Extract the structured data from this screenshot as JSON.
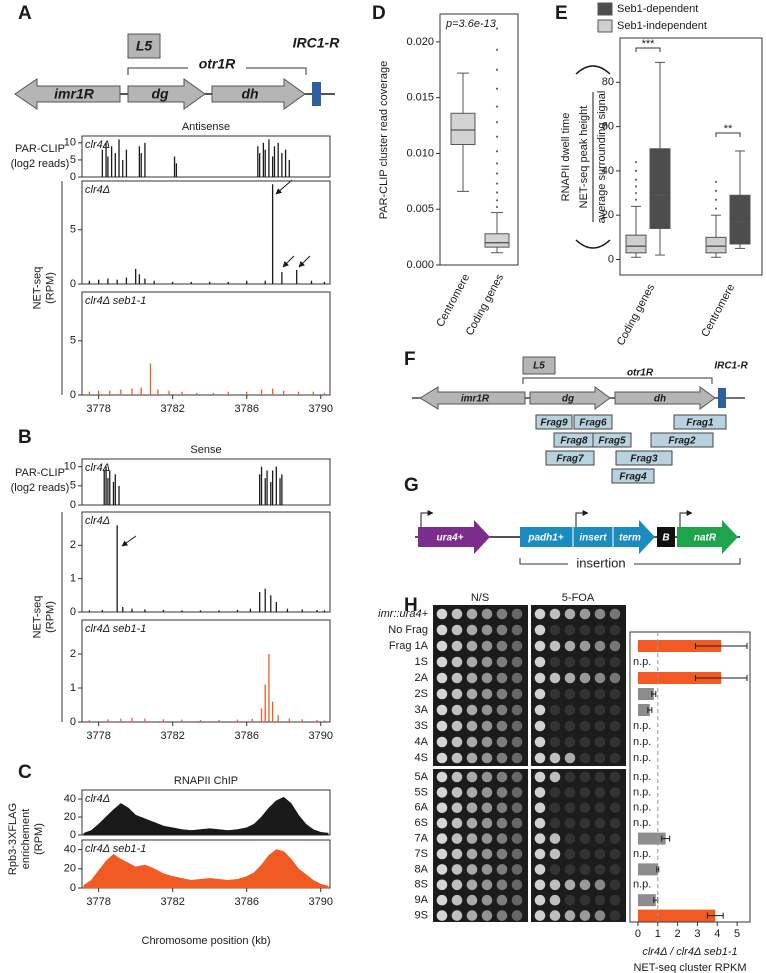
{
  "panels": [
    "A",
    "B",
    "C",
    "D",
    "E",
    "F",
    "G",
    "H"
  ],
  "diagram_A": {
    "genes": [
      "imr1R",
      "dg",
      "dh"
    ],
    "repeat": "L5",
    "region": "otr1R",
    "boundary": "IRC1-R"
  },
  "diagram_F": {
    "genes": [
      "imr1R",
      "dg",
      "dh"
    ],
    "repeat": "L5",
    "region": "otr1R",
    "boundary": "IRC1-R",
    "fragments": [
      "Frag9",
      "Frag6",
      "Frag1",
      "Frag8",
      "Frag5",
      "Frag2",
      "Frag7",
      "Frag3",
      "Frag4"
    ]
  },
  "diagram_G": {
    "marker": "ura4+",
    "parts": [
      "padh1+",
      "insert",
      "term",
      "B",
      "natR"
    ],
    "bracket": "insertion"
  },
  "chart_data": [
    {
      "type": "spikes",
      "title": "Antisense",
      "ylabel": [
        "PAR-CLIP",
        "(log2 reads)"
      ],
      "name": "clr4Δ",
      "color": "#1a1a1a",
      "x": [
        3778.2,
        3778.4,
        3778.5,
        3778.7,
        3778.9,
        3779.1,
        3779.3,
        3779.5,
        3780.2,
        3780.3,
        3780.5,
        3782.1,
        3782.2,
        3786.6,
        3786.7,
        3786.9,
        3787.0,
        3787.2,
        3787.4,
        3787.5,
        3787.7,
        3787.9,
        3788.1,
        3788.3
      ],
      "values": [
        8,
        10,
        6,
        9,
        7,
        11,
        5,
        8,
        9,
        7,
        10,
        6,
        4,
        9,
        7,
        10,
        8,
        11,
        6,
        9,
        10,
        7,
        8,
        5
      ],
      "xlim": [
        3777.1,
        3790.5
      ],
      "ylim": [
        0,
        12
      ],
      "yticks": [
        0,
        5,
        10
      ]
    },
    {
      "type": "spikes",
      "ylabel": [
        "NET-seq",
        "(RPM)"
      ],
      "name": "clr4Δ",
      "color": "#1a1a1a",
      "x": [
        3777.5,
        3778.0,
        3778.5,
        3779.0,
        3779.5,
        3780.0,
        3780.2,
        3780.5,
        3781.0,
        3782.0,
        3783.0,
        3784.0,
        3785.0,
        3786.0,
        3787.0,
        3787.4,
        3787.9,
        3788.7,
        3789.5,
        3790.2
      ],
      "values": [
        0.3,
        0.4,
        0.5,
        0.4,
        0.6,
        1.4,
        0.9,
        0.5,
        0.3,
        0.2,
        0.2,
        0.2,
        0.2,
        0.3,
        0.3,
        9.2,
        1.1,
        1.3,
        0.3,
        0.2
      ],
      "xlim": [
        3777.1,
        3790.5
      ],
      "ylim": [
        0,
        9.5
      ],
      "yticks": [
        0,
        5
      ]
    },
    {
      "type": "spikes",
      "name": "clr4Δ seb1-1",
      "color": "#f15a22",
      "x": [
        3777.5,
        3778.0,
        3778.6,
        3779.2,
        3779.8,
        3780.3,
        3780.8,
        3781.2,
        3781.8,
        3782.5,
        3783.3,
        3784.2,
        3785.0,
        3786.0,
        3786.8,
        3787.4,
        3788.0,
        3788.8,
        3789.6,
        3790.2
      ],
      "values": [
        0.3,
        0.4,
        0.4,
        0.5,
        0.6,
        0.7,
        2.9,
        0.5,
        0.4,
        0.3,
        0.2,
        0.2,
        0.3,
        0.3,
        0.5,
        0.6,
        0.4,
        0.3,
        0.3,
        0.2
      ],
      "xlim": [
        3777.1,
        3790.5
      ],
      "ylim": [
        0,
        9.5
      ],
      "yticks": [
        0,
        5
      ],
      "xticks": [
        3778,
        3782,
        3786,
        3790
      ]
    },
    {
      "type": "spikes",
      "title": "Sense",
      "ylabel": [
        "PAR-CLIP",
        "(log2 reads)"
      ],
      "name": "clr4Δ",
      "color": "#1a1a1a",
      "x": [
        3778.3,
        3778.4,
        3778.5,
        3778.6,
        3778.8,
        3778.9,
        3779.1,
        3786.7,
        3786.8,
        3787.0,
        3787.1,
        3787.3,
        3787.4,
        3787.6,
        3787.8,
        3787.9
      ],
      "values": [
        9,
        10,
        7,
        9,
        6,
        8,
        5,
        8,
        10,
        7,
        9,
        6,
        9,
        10,
        7,
        8
      ],
      "xlim": [
        3777.1,
        3790.5
      ],
      "ylim": [
        0,
        12
      ],
      "yticks": [
        0,
        5,
        10
      ]
    },
    {
      "type": "spikes",
      "ylabel": [
        "NET-seq",
        "(RPM)"
      ],
      "name": "clr4Δ",
      "color": "#1a1a1a",
      "x": [
        3777.5,
        3778.2,
        3779.0,
        3779.3,
        3779.8,
        3780.5,
        3781.5,
        3782.5,
        3783.5,
        3784.5,
        3785.5,
        3786.2,
        3786.7,
        3787.0,
        3787.3,
        3787.6,
        3788.2,
        3789.0,
        3789.8,
        3790.2
      ],
      "values": [
        0.05,
        0.06,
        2.6,
        0.15,
        0.1,
        0.08,
        0.06,
        0.05,
        0.05,
        0.05,
        0.06,
        0.1,
        0.6,
        0.7,
        0.5,
        0.3,
        0.1,
        0.08,
        0.06,
        0.05
      ],
      "xlim": [
        3777.1,
        3790.5
      ],
      "ylim": [
        0,
        3
      ],
      "yticks": [
        0,
        1,
        2
      ]
    },
    {
      "type": "spikes",
      "name": "clr4Δ seb1-1",
      "color": "#f15a22",
      "x": [
        3777.5,
        3778.5,
        3779.2,
        3779.8,
        3780.5,
        3781.5,
        3782.5,
        3783.5,
        3784.5,
        3785.5,
        3786.3,
        3786.8,
        3787.0,
        3787.2,
        3787.4,
        3787.7,
        3788.3,
        3789.0,
        3789.8,
        3790.2
      ],
      "values": [
        0.05,
        0.08,
        0.1,
        0.12,
        0.1,
        0.08,
        0.07,
        0.06,
        0.06,
        0.07,
        0.1,
        0.4,
        1.1,
        2.0,
        0.6,
        0.2,
        0.1,
        0.08,
        0.06,
        0.05
      ],
      "xlim": [
        3777.1,
        3790.5
      ],
      "ylim": [
        0,
        3
      ],
      "yticks": [
        0,
        1,
        2
      ],
      "xticks": [
        3778,
        3782,
        3786,
        3790
      ]
    },
    {
      "type": "area",
      "title": "RNAPII ChIP",
      "ylabel": [
        "Rpb3-3XFLAG",
        "enrichement",
        "(RPM)"
      ],
      "name": "clr4Δ",
      "color": "#1a1a1a",
      "x": [
        3777.2,
        3777.6,
        3778.0,
        3778.4,
        3778.8,
        3779.2,
        3779.6,
        3780.0,
        3780.5,
        3781.0,
        3781.5,
        3782.0,
        3782.5,
        3783.0,
        3783.5,
        3784.0,
        3784.5,
        3785.0,
        3785.5,
        3786.0,
        3786.4,
        3786.8,
        3787.2,
        3787.6,
        3788.0,
        3788.4,
        3788.8,
        3789.2,
        3789.6,
        3790.0,
        3790.4
      ],
      "values": [
        2,
        5,
        12,
        20,
        28,
        35,
        30,
        22,
        18,
        14,
        10,
        8,
        6,
        5,
        6,
        7,
        6,
        5,
        6,
        8,
        12,
        20,
        30,
        38,
        42,
        35,
        22,
        12,
        6,
        3,
        2
      ],
      "xlim": [
        3777.1,
        3790.5
      ],
      "ylim": [
        0,
        50
      ],
      "yticks": [
        0,
        20,
        40
      ]
    },
    {
      "type": "area",
      "name": "clr4Δ seb1-1",
      "color": "#f15a22",
      "x": [
        3777.2,
        3777.6,
        3778.0,
        3778.4,
        3778.8,
        3779.2,
        3779.6,
        3780.0,
        3780.5,
        3781.0,
        3781.5,
        3782.0,
        3782.5,
        3783.0,
        3783.5,
        3784.0,
        3784.5,
        3785.0,
        3785.5,
        3786.0,
        3786.4,
        3786.8,
        3787.2,
        3787.6,
        3788.0,
        3788.4,
        3788.8,
        3789.2,
        3789.6,
        3790.0,
        3790.4
      ],
      "values": [
        3,
        8,
        18,
        28,
        35,
        30,
        26,
        22,
        24,
        20,
        15,
        12,
        10,
        8,
        9,
        10,
        9,
        8,
        9,
        12,
        16,
        24,
        34,
        40,
        38,
        30,
        20,
        14,
        8,
        4,
        2
      ],
      "xlim": [
        3777.1,
        3790.5
      ],
      "ylim": [
        0,
        50
      ],
      "yticks": [
        0,
        20,
        40
      ],
      "xticks": [
        3778,
        3782,
        3786,
        3790
      ],
      "xlabel": "Chromosome position (kb)"
    },
    {
      "type": "box",
      "ylabel": "PAR-CLIP cluster read coverage",
      "annotation": "p=3.6e-13",
      "color": "#d3d3d3",
      "categories": [
        "Centromere",
        "Coding genes"
      ],
      "boxes": [
        {
          "whislo": 0.0066,
          "q1": 0.0108,
          "med": 0.0121,
          "q3": 0.0136,
          "whishi": 0.0172
        },
        {
          "whislo": 0.0011,
          "q1": 0.0016,
          "med": 0.002,
          "q3": 0.0028,
          "whishi": 0.0047,
          "fliers": [
            0.0052,
            0.0058,
            0.0065,
            0.0073,
            0.0082,
            0.0091,
            0.0102,
            0.0115,
            0.0128,
            0.0142,
            0.0158,
            0.0175,
            0.0193,
            0.0212
          ]
        }
      ],
      "ylim": [
        0,
        0.0225
      ],
      "yticks": [
        {
          "value": 0,
          "label": "0.000"
        },
        {
          "value": 0.005,
          "label": "0.005"
        },
        {
          "value": 0.01,
          "label": "0.010"
        },
        {
          "value": 0.015,
          "label": "0.015"
        },
        {
          "value": 0.02,
          "label": "0.020"
        }
      ]
    },
    {
      "type": "box",
      "ylabel": [
        "RNAPII dwell time",
        "NET-seq peak height",
        "average surrounding signal"
      ],
      "annotations": [
        "***",
        "**"
      ],
      "categories": [
        "Coding genes",
        "Centromere"
      ],
      "series": [
        {
          "name": "Seb1-dependent",
          "color": "#4d4d4d",
          "boxes": [
            {
              "whislo": 2,
              "q1": 14,
              "med": 29,
              "q3": 50,
              "whishi": 89
            },
            {
              "whislo": 5,
              "q1": 7,
              "med": 17,
              "q3": 29,
              "whishi": 49
            }
          ]
        },
        {
          "name": "Seb1-independent",
          "color": "#cfcfcf",
          "boxes": [
            {
              "whislo": 1,
              "q1": 3,
              "med": 6,
              "q3": 11,
              "whishi": 24,
              "fliers": [
                27,
                30,
                33,
                36,
                40,
                44
              ]
            },
            {
              "whislo": 1,
              "q1": 3,
              "med": 6,
              "q3": 10,
              "whishi": 20,
              "fliers": [
                23,
                27,
                31,
                35
              ]
            }
          ]
        }
      ],
      "ylim": [
        -7,
        100
      ],
      "yticks": [
        0,
        20,
        40,
        60,
        80
      ]
    },
    {
      "type": "hbar",
      "plate_titles": [
        "N/S",
        "5-FOA"
      ],
      "categories": [
        "imr::ura4+",
        "No Frag",
        "Frag 1A",
        "1S",
        "2A",
        "2S",
        "3A",
        "3S",
        "4A",
        "4S",
        "5A",
        "5S",
        "6A",
        "6S",
        "7A",
        "7S",
        "8A",
        "8S",
        "9A",
        "9S"
      ],
      "spots_5foa": [
        6,
        1,
        6,
        1,
        6,
        1,
        1,
        1,
        1,
        3,
        2,
        1,
        1,
        1,
        2,
        2,
        1,
        5,
        2,
        5
      ],
      "values": [
        null,
        null,
        4.2,
        null,
        4.2,
        0.8,
        0.6,
        null,
        null,
        null,
        null,
        null,
        null,
        null,
        1.4,
        null,
        1.0,
        null,
        0.9,
        3.9
      ],
      "errors": [
        null,
        null,
        1.3,
        null,
        1.3,
        0.1,
        0.1,
        null,
        null,
        null,
        null,
        null,
        null,
        null,
        0.2,
        null,
        0.05,
        null,
        0.1,
        0.4
      ],
      "value_labels": [
        null,
        null,
        null,
        "n.p.",
        null,
        null,
        null,
        "n.p.",
        "n.p.",
        "n.p.",
        "n.p.",
        "n.p.",
        "n.p.",
        "n.p.",
        null,
        "n.p.",
        null,
        "n.p.",
        null,
        null
      ],
      "colors": [
        null,
        null,
        "#f15a22",
        null,
        "#f15a22",
        "#8c8c8c",
        "#8c8c8c",
        null,
        null,
        null,
        null,
        null,
        null,
        null,
        "#8c8c8c",
        null,
        "#8c8c8c",
        null,
        "#8c8c8c",
        "#f15a22"
      ],
      "refline": 1,
      "xlim": [
        -0.4,
        5.65
      ],
      "xticks": [
        0,
        1,
        2,
        3,
        4,
        5
      ],
      "xlabel": [
        "clr4Δ / clr4Δ seb1-1",
        "NET-seq cluster RPKM"
      ]
    }
  ]
}
